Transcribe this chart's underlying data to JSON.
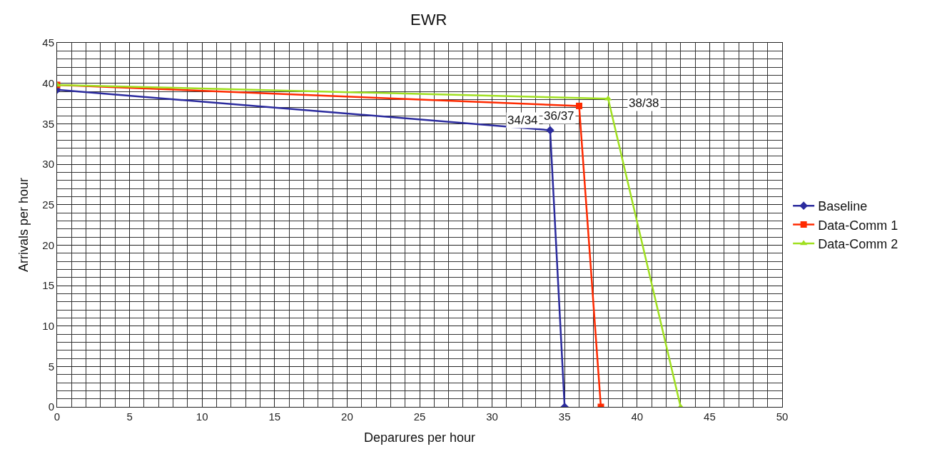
{
  "chart_data": {
    "type": "line",
    "title": "EWR",
    "xlabel": "Deparures per hour",
    "ylabel": "Arrivals per hour",
    "series": [
      {
        "name": "Baseline",
        "color": "#2b2b9e",
        "marker": "diamond",
        "x": [
          0,
          34,
          35
        ],
        "values": [
          39.2,
          34.2,
          0
        ]
      },
      {
        "name": "Data-Comm 1",
        "color": "#ff2a00",
        "marker": "square",
        "x": [
          0,
          36,
          37.5
        ],
        "values": [
          39.8,
          37.2,
          0
        ]
      },
      {
        "name": "Data-Comm 2",
        "color": "#a0e020",
        "marker": "triangle",
        "x": [
          0,
          38,
          43
        ],
        "values": [
          39.8,
          38.1,
          0
        ]
      }
    ],
    "annotations": [
      {
        "text": "34/34",
        "x": 34,
        "y": 34.2
      },
      {
        "text": "36/37",
        "x": 36,
        "y": 37.2
      },
      {
        "text": "38/38",
        "x": 38,
        "y": 38.1
      }
    ],
    "xlim": [
      0,
      50
    ],
    "xticks": [
      0,
      5,
      10,
      15,
      20,
      25,
      30,
      35,
      40,
      45,
      50
    ],
    "ylim": [
      0,
      45
    ],
    "yticks": [
      0,
      5,
      10,
      15,
      20,
      25,
      30,
      35,
      40,
      45
    ],
    "grid": true,
    "legend": "right",
    "line_style": "solid"
  }
}
